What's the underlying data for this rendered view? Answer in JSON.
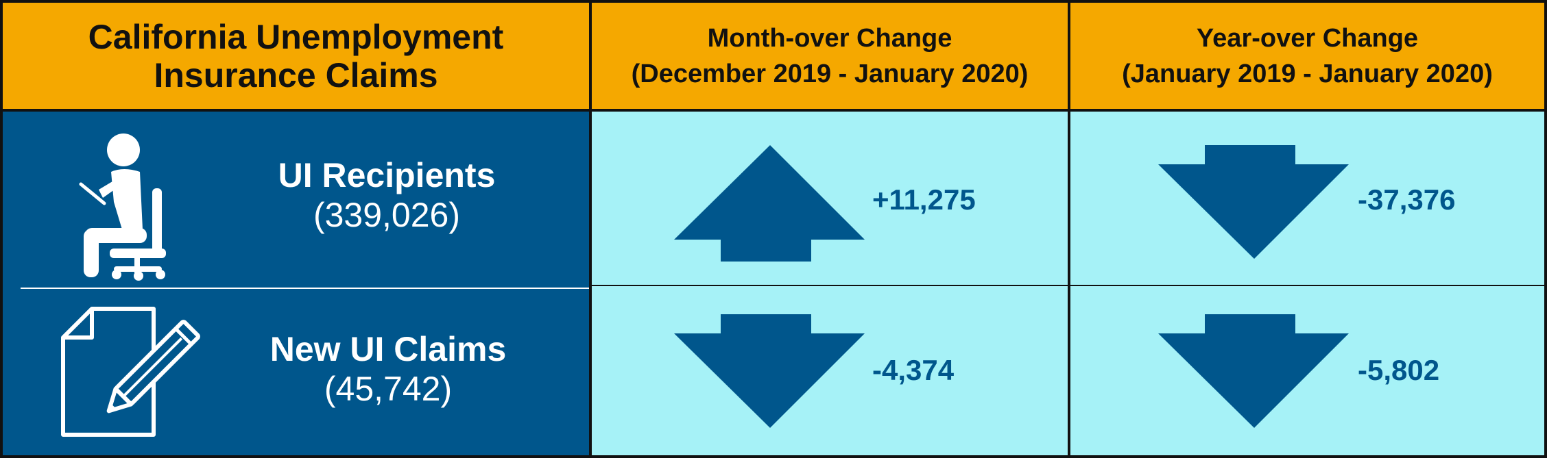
{
  "header": {
    "title": "California Unemployment Insurance Claims",
    "mom_label": "Month-over Change",
    "mom_range": "(December 2019 - January 2020)",
    "yoy_label": "Year-over Change",
    "yoy_range": "(January 2019 - January 2020)"
  },
  "rows": [
    {
      "label": "UI Recipients",
      "value": "(339,026)",
      "icon": "seated-person-icon",
      "mom": {
        "change": "+11,275",
        "direction": "up"
      },
      "yoy": {
        "change": "-37,376",
        "direction": "down"
      }
    },
    {
      "label": "New UI Claims",
      "value": "(45,742)",
      "icon": "document-pencil-icon",
      "mom": {
        "change": "-4,374",
        "direction": "down"
      },
      "yoy": {
        "change": "-5,802",
        "direction": "down"
      }
    }
  ],
  "colors": {
    "header_bg": "#F5A800",
    "label_bg": "#00568C",
    "value_bg": "#A6F2F7",
    "arrow": "#00568C"
  }
}
